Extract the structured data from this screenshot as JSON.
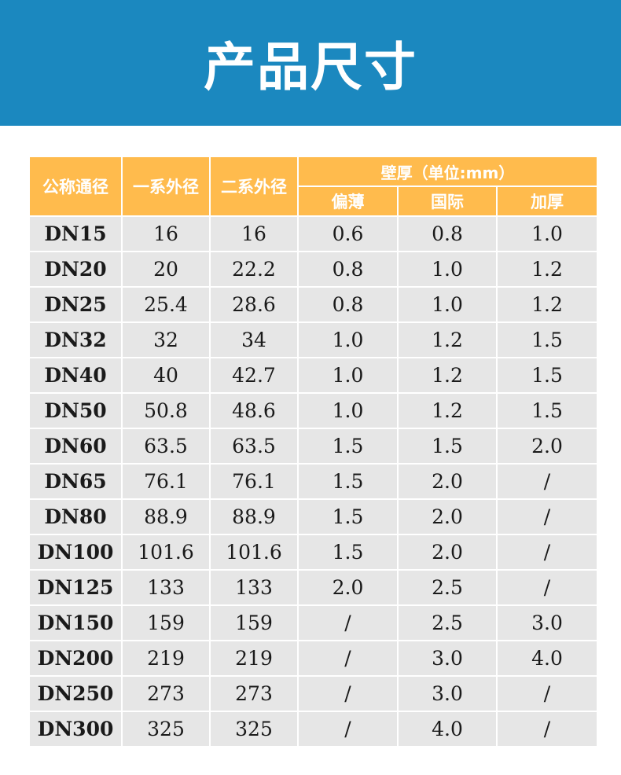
{
  "banner": {
    "title": "产品尺寸"
  },
  "table": {
    "headers": {
      "nominal": "公称通径",
      "od_series1": "一系外径",
      "od_series2": "二系外径",
      "wall_group": "壁厚（单位:mm）",
      "wall_thin": "偏薄",
      "wall_national": "国际",
      "wall_thick": "加厚"
    },
    "rows": [
      [
        "DN15",
        "16",
        "16",
        "0.6",
        "0.8",
        "1.0"
      ],
      [
        "DN20",
        "20",
        "22.2",
        "0.8",
        "1.0",
        "1.2"
      ],
      [
        "DN25",
        "25.4",
        "28.6",
        "0.8",
        "1.0",
        "1.2"
      ],
      [
        "DN32",
        "32",
        "34",
        "1.0",
        "1.2",
        "1.5"
      ],
      [
        "DN40",
        "40",
        "42.7",
        "1.0",
        "1.2",
        "1.5"
      ],
      [
        "DN50",
        "50.8",
        "48.6",
        "1.0",
        "1.2",
        "1.5"
      ],
      [
        "DN60",
        "63.5",
        "63.5",
        "1.5",
        "1.5",
        "2.0"
      ],
      [
        "DN65",
        "76.1",
        "76.1",
        "1.5",
        "2.0",
        "/"
      ],
      [
        "DN80",
        "88.9",
        "88.9",
        "1.5",
        "2.0",
        "/"
      ],
      [
        "DN100",
        "101.6",
        "101.6",
        "1.5",
        "2.0",
        "/"
      ],
      [
        "DN125",
        "133",
        "133",
        "2.0",
        "2.5",
        "/"
      ],
      [
        "DN150",
        "159",
        "159",
        "/",
        "2.5",
        "3.0"
      ],
      [
        "DN200",
        "219",
        "219",
        "/",
        "3.0",
        "4.0"
      ],
      [
        "DN250",
        "273",
        "273",
        "/",
        "3.0",
        "/"
      ],
      [
        "DN300",
        "325",
        "325",
        "/",
        "4.0",
        "/"
      ]
    ]
  }
}
